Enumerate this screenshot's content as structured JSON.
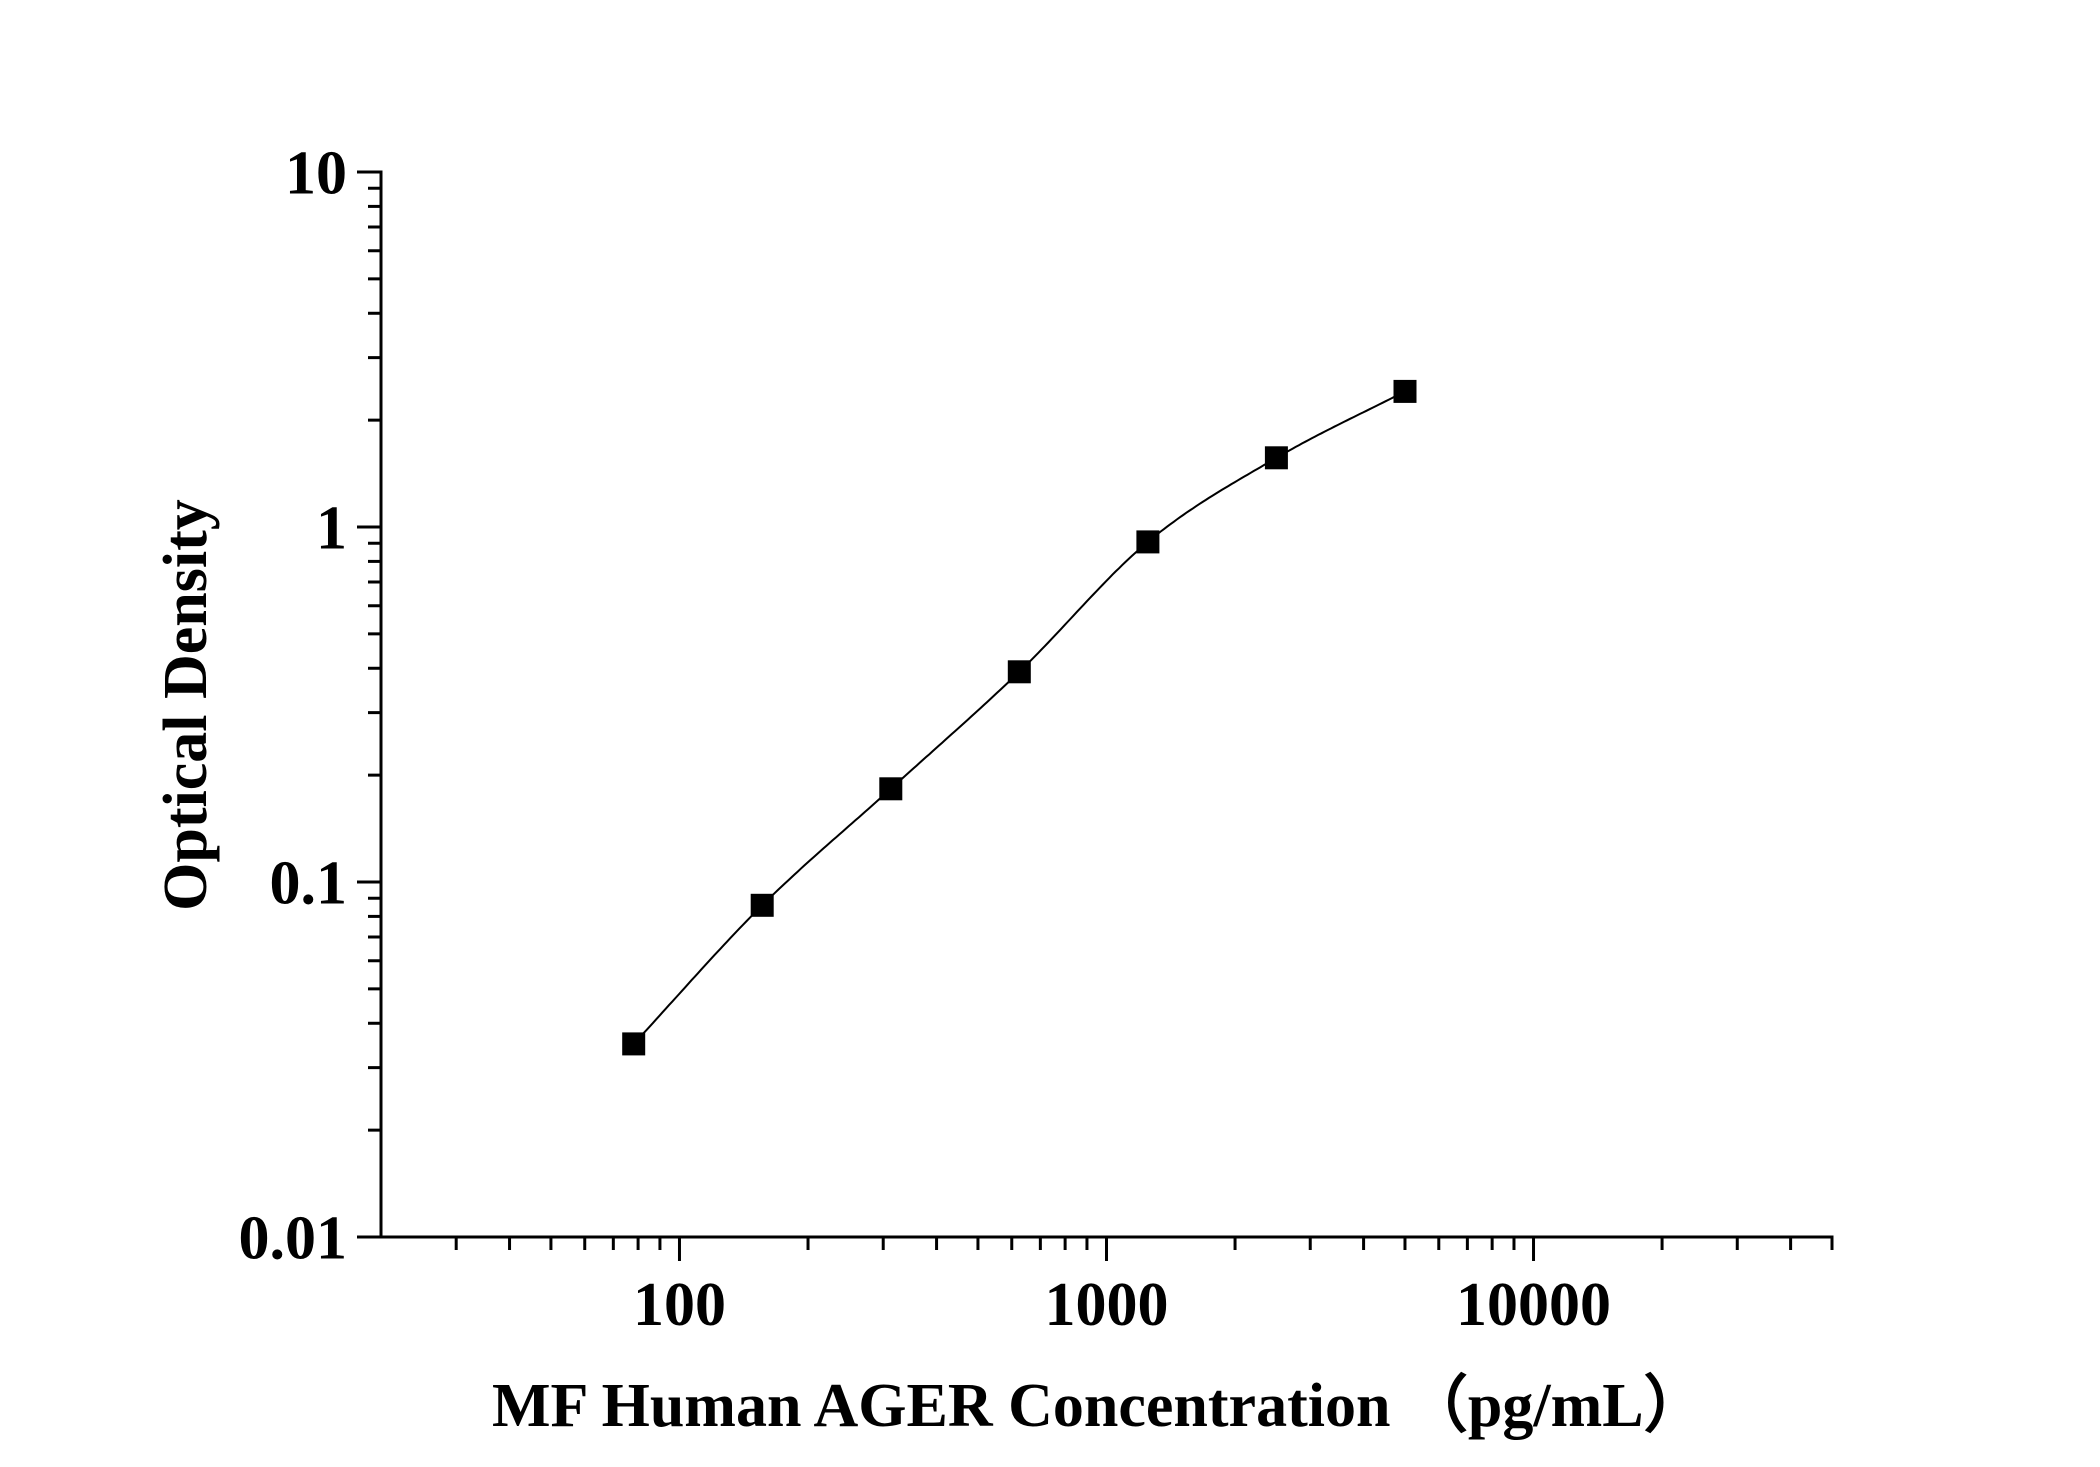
{
  "chart_data": {
    "type": "scatter",
    "xlabel": "MF Human AGER Concentration （pg/mL）",
    "ylabel": "Optical Density",
    "xscale": "log",
    "yscale": "log",
    "xlim": [
      20,
      50000
    ],
    "ylim": [
      0.01,
      10
    ],
    "x_tick_labels": [
      "100",
      "1000",
      "10000"
    ],
    "y_tick_labels": [
      "0.01",
      "0.1",
      "1",
      "10"
    ],
    "series": [
      {
        "x": [
          78.125,
          156.25,
          312.5,
          625,
          1250,
          2500,
          5000
        ],
        "y": [
          0.035,
          0.086,
          0.183,
          0.391,
          0.908,
          1.566,
          2.41
        ],
        "marker": "square",
        "line": "smooth fitted curve",
        "color": "#000000"
      }
    ],
    "grid": false,
    "legend": "none"
  }
}
